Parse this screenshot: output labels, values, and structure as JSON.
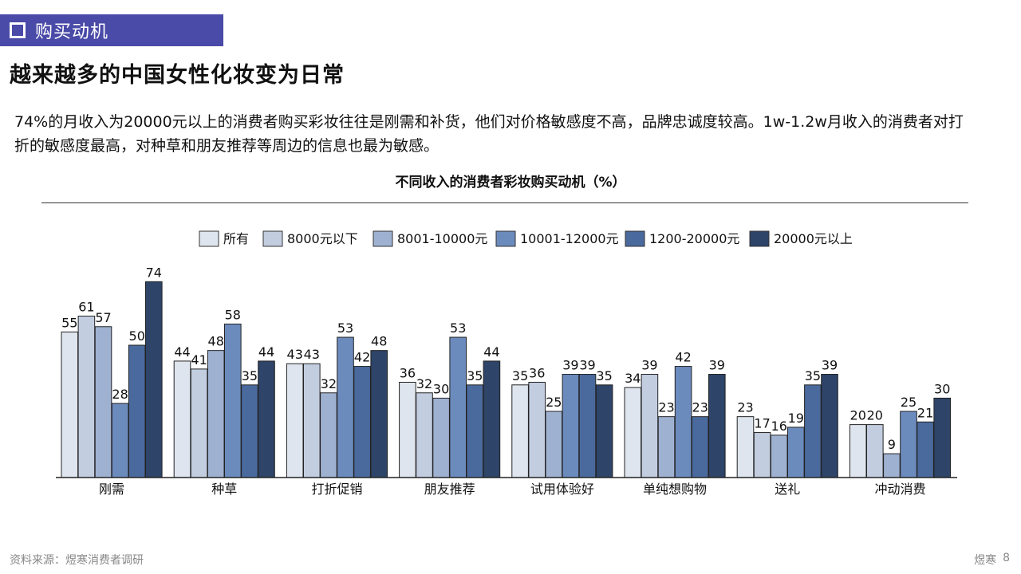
{
  "section": {
    "label": "购买动机"
  },
  "headline": "越来越多的中国女性化妆变为日常",
  "body_text": "74%的月收入为20000元以上的消费者购买彩妆往往是刚需和补货，他们对价格敏感度不高，品牌忠诚度较高。1w-1.2w月收入的消费者对打折的敏感度最高，对种草和朋友推荐等周边的信息也最为敏感。",
  "chart_data": {
    "type": "bar",
    "title": "不同收入的消费者彩妆购买动机（%）",
    "categories": [
      "刚需",
      "种草",
      "打折促销",
      "朋友推荐",
      "试用体验好",
      "单纯想购物",
      "送礼",
      "冲动消费"
    ],
    "series": [
      {
        "name": "所有",
        "color": "#dfe5ee",
        "values": [
          55,
          44,
          43,
          36,
          35,
          34,
          23,
          20
        ]
      },
      {
        "name": "8000元以下",
        "color": "#c2cde0",
        "values": [
          61,
          41,
          43,
          32,
          36,
          39,
          17,
          20
        ]
      },
      {
        "name": "8001-10000元",
        "color": "#9fb1d1",
        "values": [
          57,
          48,
          32,
          30,
          25,
          23,
          16,
          9
        ]
      },
      {
        "name": "10001-12000元",
        "color": "#6c8bbd",
        "values": [
          28,
          58,
          53,
          53,
          39,
          42,
          19,
          25
        ]
      },
      {
        "name": "1200-20000元",
        "color": "#4a6a9d",
        "values": [
          50,
          35,
          42,
          35,
          39,
          23,
          35,
          21
        ]
      },
      {
        "name": "20000元以上",
        "color": "#2e4468",
        "values": [
          74,
          44,
          48,
          44,
          35,
          39,
          39,
          30
        ]
      }
    ],
    "ylim": [
      0,
      80
    ],
    "grid": false,
    "legend_position": "top",
    "data_labels": true
  },
  "footer": {
    "source": "资料来源：煜寒消费者调研",
    "brand": "煜寒",
    "page": "8"
  }
}
